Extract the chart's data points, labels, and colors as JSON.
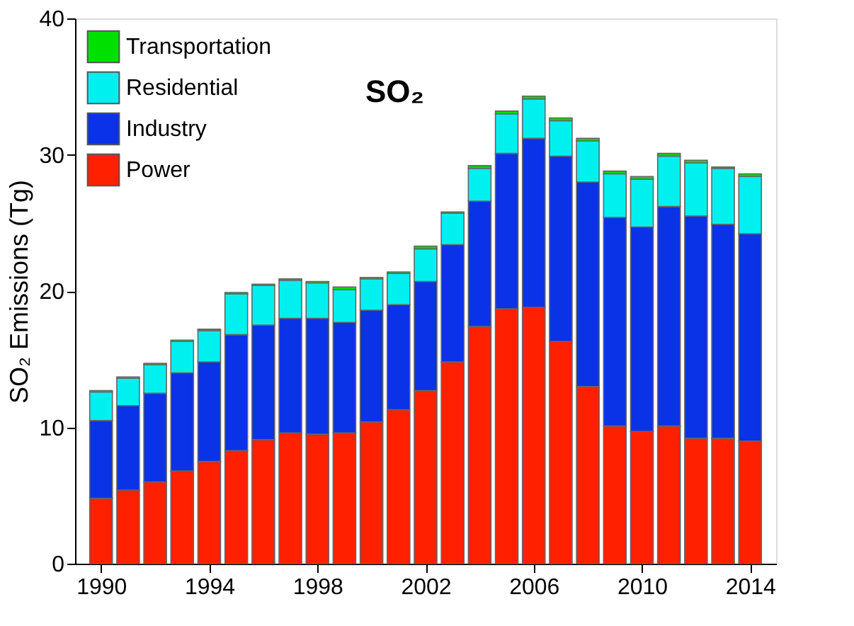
{
  "chart_data": {
    "type": "bar",
    "stacked": true,
    "title": "SO₂",
    "ylabel": "SO₂ Emissions (Tg)",
    "categories": [
      "1990",
      null,
      null,
      null,
      "1994",
      null,
      null,
      null,
      "1998",
      null,
      null,
      null,
      "2002",
      null,
      null,
      null,
      "2006",
      null,
      null,
      null,
      "2010",
      null,
      null,
      null,
      "2014"
    ],
    "series": [
      {
        "name": "Power",
        "color": "#ff2000",
        "values": [
          4.8,
          5.4,
          6.0,
          6.8,
          7.5,
          8.3,
          9.1,
          9.6,
          9.5,
          9.6,
          10.4,
          11.3,
          12.7,
          14.8,
          17.4,
          18.7,
          18.8,
          16.3,
          13.0,
          10.1,
          9.7,
          10.1,
          9.2,
          9.2,
          9.0
        ]
      },
      {
        "name": "Industry",
        "color": "#0a32e6",
        "values": [
          5.7,
          6.2,
          6.5,
          7.2,
          7.3,
          8.5,
          8.4,
          8.4,
          8.5,
          8.1,
          8.2,
          7.7,
          8.0,
          8.6,
          9.2,
          11.4,
          12.4,
          13.6,
          15.0,
          15.3,
          15.0,
          16.1,
          16.3,
          15.7,
          15.2
        ]
      },
      {
        "name": "Residential",
        "color": "#00f0f0",
        "values": [
          2.1,
          2.0,
          2.1,
          2.3,
          2.3,
          3.0,
          2.9,
          2.8,
          2.6,
          2.4,
          2.3,
          2.3,
          2.4,
          2.3,
          2.4,
          2.9,
          2.9,
          2.6,
          3.0,
          3.2,
          3.5,
          3.7,
          3.9,
          4.1,
          4.2
        ]
      },
      {
        "name": "Transportation",
        "color": "#00e000",
        "values": [
          0.1,
          0.1,
          0.1,
          0.1,
          0.1,
          0.1,
          0.1,
          0.1,
          0.1,
          0.2,
          0.1,
          0.1,
          0.2,
          0.1,
          0.2,
          0.2,
          0.2,
          0.2,
          0.2,
          0.2,
          0.2,
          0.2,
          0.2,
          0.1,
          0.2
        ]
      }
    ],
    "ylim": [
      0,
      40
    ],
    "yticks": [
      0,
      10,
      20,
      30,
      40
    ],
    "grid": false,
    "legend": "top left"
  }
}
